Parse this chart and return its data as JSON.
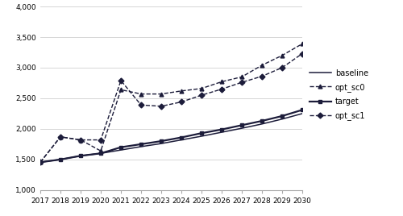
{
  "years": [
    2017,
    2018,
    2019,
    2020,
    2021,
    2022,
    2023,
    2024,
    2025,
    2026,
    2027,
    2028,
    2029,
    2030
  ],
  "baseline": [
    1455,
    1500,
    1560,
    1600,
    1655,
    1710,
    1760,
    1820,
    1880,
    1945,
    2010,
    2080,
    2160,
    2250
  ],
  "opt_sc0": [
    1455,
    1870,
    1820,
    1640,
    2640,
    2570,
    2570,
    2620,
    2660,
    2770,
    2850,
    3040,
    3200,
    3390
  ],
  "target": [
    1455,
    1500,
    1560,
    1600,
    1700,
    1750,
    1800,
    1860,
    1930,
    1990,
    2060,
    2130,
    2210,
    2310
  ],
  "opt_sc1": [
    1455,
    1870,
    1820,
    1820,
    2790,
    2390,
    2370,
    2440,
    2550,
    2650,
    2760,
    2860,
    3000,
    3230
  ],
  "ylim": [
    1000,
    4000
  ],
  "yticks": [
    1000,
    1500,
    2000,
    2500,
    3000,
    3500,
    4000
  ],
  "color_dark": "#1c1c3a",
  "bg_color": "#ffffff",
  "grid_color": "#d0d0d0"
}
